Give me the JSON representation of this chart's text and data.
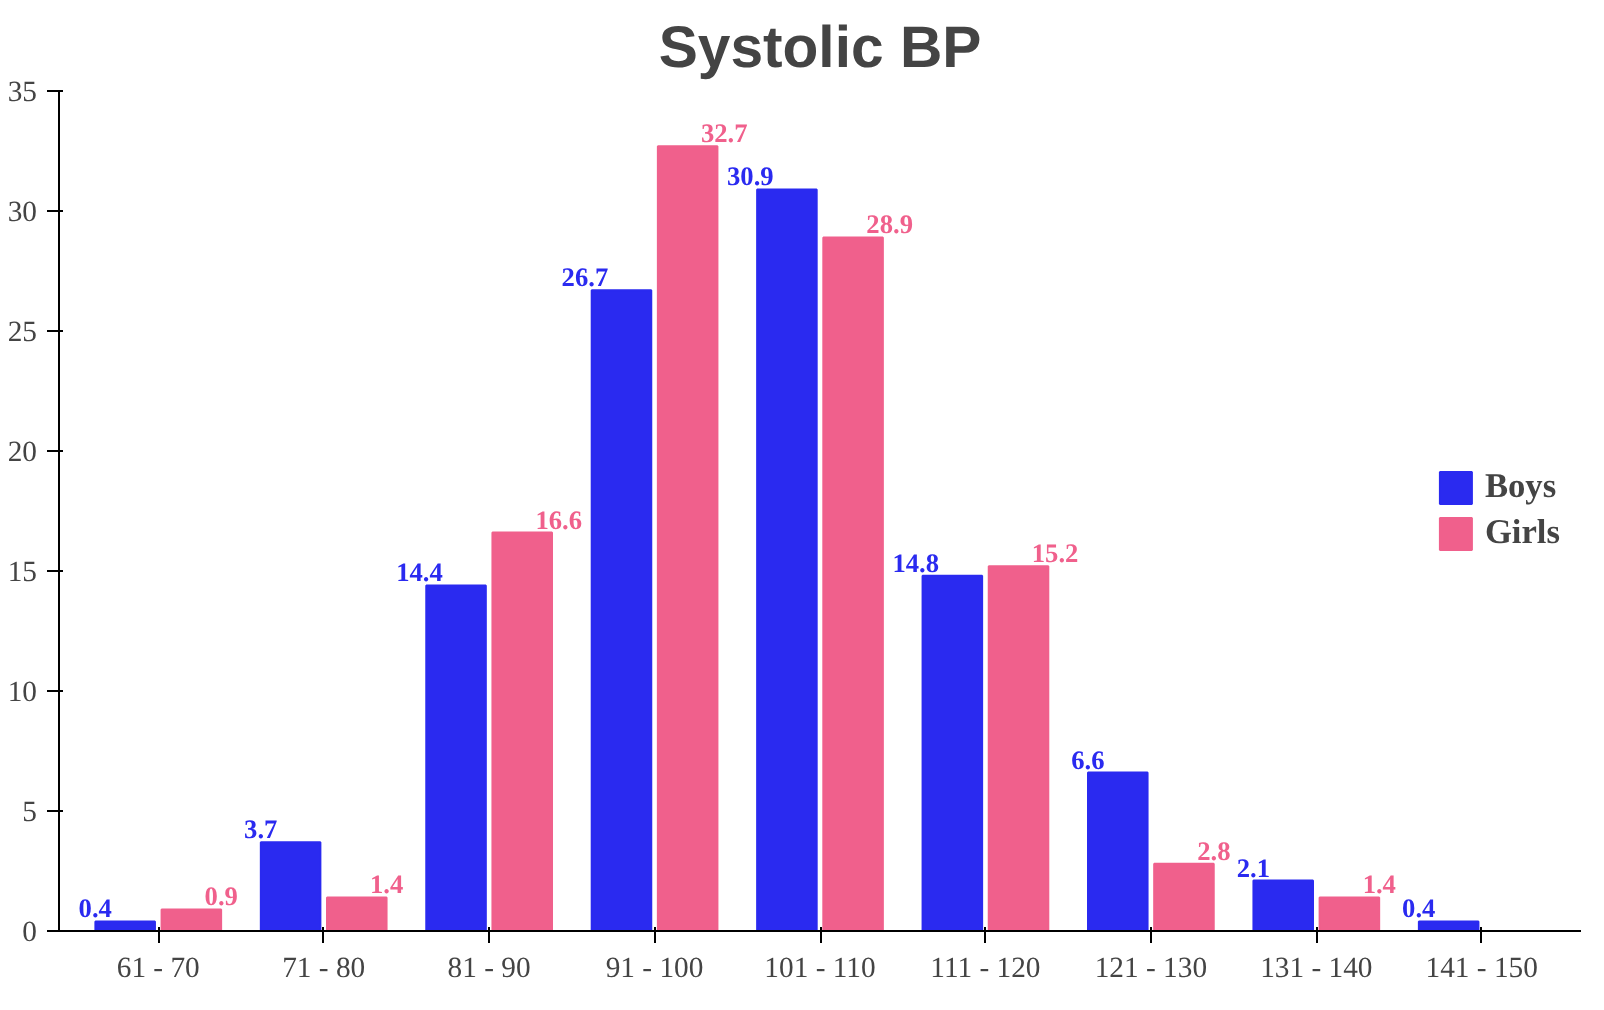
{
  "chart_data": {
    "type": "bar",
    "title": "Systolic BP",
    "categories": [
      "61 - 70",
      "71 - 80",
      "81 - 90",
      "91 - 100",
      "101 - 110",
      "111 - 120",
      "121 - 130",
      "131 - 140",
      "141 - 150"
    ],
    "series": [
      {
        "name": "Boys",
        "color": "#2a2af0",
        "values": [
          0.4,
          3.7,
          14.4,
          26.7,
          30.9,
          14.8,
          6.6,
          2.1,
          0.4
        ]
      },
      {
        "name": "Girls",
        "color": "#f0608c",
        "values": [
          0.9,
          1.4,
          16.6,
          32.7,
          28.9,
          15.2,
          2.8,
          1.4,
          null
        ]
      }
    ],
    "ylim": [
      0,
      35
    ],
    "yticks": [
      0,
      5,
      10,
      15,
      20,
      25,
      30,
      35
    ],
    "grid": false,
    "legend": "right",
    "data_labels": true
  }
}
